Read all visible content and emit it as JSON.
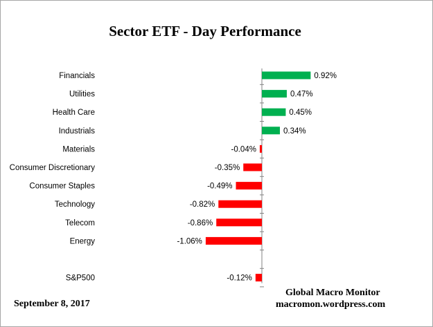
{
  "chart_data": {
    "type": "bar",
    "orientation": "horizontal",
    "title": "Sector ETF - Day  Performance",
    "categories": [
      "Financials",
      "Utilities",
      "Health Care",
      "Industrials",
      "Materials",
      "Consumer Discretionary",
      "Consumer Staples",
      "Technology",
      "Telecom",
      "Energy",
      "",
      "S&P500"
    ],
    "values": [
      0.92,
      0.47,
      0.45,
      0.34,
      -0.04,
      -0.35,
      -0.49,
      -0.82,
      -0.86,
      -1.06,
      null,
      -0.12
    ],
    "data_labels": [
      "0.92%",
      "0.47%",
      "0.45%",
      "0.34%",
      "-0.04%",
      "-0.35%",
      "-0.49%",
      "-0.82%",
      "-0.86%",
      "-1.06%",
      "",
      "-0.12%"
    ],
    "unit": "%",
    "xlim": [
      -1.06,
      0.92
    ],
    "grid": false,
    "legend": "none",
    "colors": {
      "positive": "#00b050",
      "negative": "#ff0000",
      "axis": "#808080"
    }
  },
  "footer": {
    "date": "September 8, 2017",
    "source_name": "Global Macro Monitor",
    "source_url": "macromon.wordpress.com"
  }
}
